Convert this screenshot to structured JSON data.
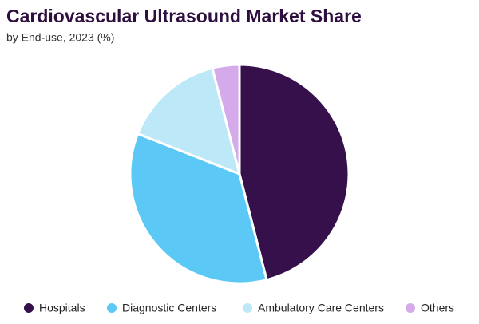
{
  "chart_data": {
    "type": "pie",
    "title": "Cardiovascular Ultrasound Market Share",
    "subtitle": "by End-use, 2023 (%)",
    "categories": [
      "Hospitals",
      "Diagnostic Centers",
      "Ambulatory Care Centers",
      "Others"
    ],
    "values": [
      46,
      35,
      15,
      4
    ],
    "colors": [
      "#36104a",
      "#5bc8f5",
      "#bde8f8",
      "#d4aaeb"
    ],
    "legend": "bottom"
  }
}
